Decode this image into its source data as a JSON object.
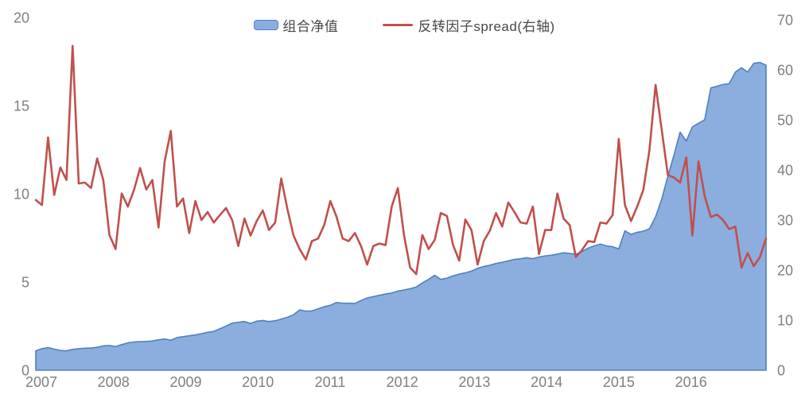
{
  "chart_data": {
    "type": "area+line combo, dual axis",
    "title": "",
    "background": "#FFFFFF",
    "legend_position": "top-center",
    "legend": [
      {
        "label": "组合净值",
        "swatch": "area",
        "fill": "#8BAEDF",
        "border": "#4F81BD"
      },
      {
        "label": "反转因子spread(右轴)",
        "swatch": "line",
        "color": "#C0504D"
      }
    ],
    "x_tick_labels": [
      "2007",
      "2008",
      "2009",
      "2010",
      "2011",
      "2012",
      "2013",
      "2014",
      "2015",
      "2016"
    ],
    "x_frequency": "monthly",
    "grid": "off",
    "left_axis": {
      "tick_labels": [
        "0",
        "5",
        "10",
        "15",
        "20"
      ],
      "ticks": [
        0,
        5,
        10,
        15,
        20
      ],
      "range": [
        0,
        20
      ]
    },
    "right_axis": {
      "tick_labels": [
        "0",
        "10",
        "20",
        "30",
        "40",
        "50",
        "60",
        "70"
      ],
      "ticks": [
        0,
        10,
        20,
        30,
        40,
        50,
        60,
        70
      ],
      "range": [
        0,
        70
      ]
    },
    "series": [
      {
        "name": "组合净值",
        "type": "area",
        "axis": "left",
        "fill": "#8BAEDF",
        "border": "#4F81BD",
        "values": [
          1.1,
          1.22,
          1.28,
          1.2,
          1.12,
          1.1,
          1.18,
          1.22,
          1.25,
          1.26,
          1.3,
          1.38,
          1.4,
          1.34,
          1.45,
          1.55,
          1.6,
          1.62,
          1.63,
          1.66,
          1.72,
          1.77,
          1.7,
          1.85,
          1.9,
          1.95,
          2.0,
          2.07,
          2.15,
          2.2,
          2.35,
          2.5,
          2.67,
          2.72,
          2.76,
          2.65,
          2.78,
          2.82,
          2.76,
          2.8,
          2.9,
          3.0,
          3.15,
          3.42,
          3.35,
          3.36,
          3.48,
          3.6,
          3.68,
          3.84,
          3.8,
          3.8,
          3.78,
          3.95,
          4.1,
          4.17,
          4.25,
          4.32,
          4.38,
          4.48,
          4.55,
          4.62,
          4.72,
          4.95,
          5.15,
          5.38,
          5.15,
          5.22,
          5.35,
          5.45,
          5.52,
          5.62,
          5.78,
          5.88,
          5.95,
          6.05,
          6.12,
          6.2,
          6.28,
          6.32,
          6.38,
          6.32,
          6.42,
          6.48,
          6.52,
          6.58,
          6.66,
          6.62,
          6.58,
          6.72,
          6.92,
          7.05,
          7.15,
          7.05,
          7.0,
          6.88,
          7.9,
          7.7,
          7.82,
          7.88,
          8.02,
          8.7,
          9.7,
          11.0,
          12.2,
          13.5,
          13.0,
          13.8,
          14.0,
          14.2,
          16.0,
          16.1,
          16.2,
          16.25,
          16.9,
          17.15,
          16.9,
          17.4,
          17.45,
          17.3
        ]
      },
      {
        "name": "反转因子spread(右轴)",
        "type": "line",
        "axis": "right",
        "color": "#C0504D",
        "values": [
          34.0,
          33.0,
          46.5,
          35.0,
          40.5,
          38.0,
          64.8,
          37.3,
          37.5,
          36.4,
          42.3,
          38.0,
          27.0,
          24.2,
          35.3,
          32.7,
          36.0,
          40.4,
          36.1,
          38.0,
          28.5,
          41.7,
          47.8,
          32.7,
          34.3,
          27.4,
          33.8,
          30.0,
          31.6,
          29.5,
          31.0,
          32.4,
          30.0,
          24.8,
          30.3,
          26.9,
          29.8,
          31.9,
          28.0,
          29.5,
          38.3,
          32.2,
          26.9,
          24.2,
          22.1,
          25.8,
          26.3,
          29.0,
          33.8,
          30.7,
          26.3,
          25.8,
          27.4,
          24.8,
          21.1,
          24.8,
          25.3,
          25.0,
          32.7,
          36.4,
          27.0,
          20.5,
          19.2,
          27.0,
          24.2,
          26.0,
          31.4,
          30.8,
          25.0,
          21.9,
          30.1,
          28.0,
          21.1,
          25.8,
          27.9,
          31.4,
          28.7,
          33.5,
          31.6,
          29.5,
          29.3,
          32.7,
          23.2,
          28.0,
          28.0,
          35.3,
          30.3,
          29.0,
          22.6,
          24.0,
          25.8,
          25.6,
          29.5,
          29.3,
          31.0,
          46.2,
          33.0,
          29.8,
          32.7,
          36.0,
          44.0,
          57.0,
          48.0,
          39.0,
          38.5,
          37.5,
          42.5,
          26.9,
          41.7,
          34.8,
          30.6,
          31.1,
          30.0,
          28.2,
          28.7,
          20.5,
          23.4,
          20.8,
          22.6,
          26.3
        ]
      }
    ],
    "axis_text_color": "#7F7F7F"
  }
}
